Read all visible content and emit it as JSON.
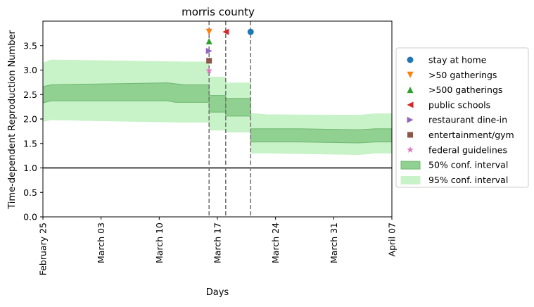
{
  "chart_data": {
    "type": "line",
    "title": "morris county",
    "xlabel": "Days",
    "ylabel": "Time-dependent Reproduction Number",
    "xlim": [
      "2020-02-25",
      "2020-04-07"
    ],
    "ylim": [
      0,
      4.0
    ],
    "yticks": [
      0.0,
      0.5,
      1.0,
      1.5,
      2.0,
      2.5,
      3.0,
      3.5
    ],
    "xticks": [
      {
        "date": "2020-02-25",
        "label": "February 25"
      },
      {
        "date": "2020-03-03",
        "label": "March 03"
      },
      {
        "date": "2020-03-10",
        "label": "March 10"
      },
      {
        "date": "2020-03-17",
        "label": "March 17"
      },
      {
        "date": "2020-03-24",
        "label": "March 24"
      },
      {
        "date": "2020-03-31",
        "label": "March 31"
      },
      {
        "date": "2020-04-07",
        "label": "April 07"
      }
    ],
    "grid": false,
    "legend_position": "right",
    "reference_line": {
      "y": 1.0,
      "color": "#000000"
    },
    "interventions": [
      {
        "name": "stay at home",
        "date": "2020-03-21",
        "y": 3.78,
        "marker": "circle",
        "color": "#1f77b4"
      },
      {
        "name": ">50 gatherings",
        "date": "2020-03-16",
        "y": 3.78,
        "marker": "triangle-down",
        "color": "#ff7f0e"
      },
      {
        "name": ">500 gatherings",
        "date": "2020-03-16",
        "y": 3.59,
        "marker": "triangle-up",
        "color": "#2ca02c"
      },
      {
        "name": "public schools",
        "date": "2020-03-18",
        "y": 3.78,
        "marker": "triangle-left",
        "color": "#d62728"
      },
      {
        "name": "restaurant dine-in",
        "date": "2020-03-16",
        "y": 3.39,
        "marker": "triangle-right",
        "color": "#9467bd"
      },
      {
        "name": "entertainment/gym",
        "date": "2020-03-16",
        "y": 3.19,
        "marker": "square",
        "color": "#8c564b"
      },
      {
        "name": "federal guidelines",
        "date": "2020-03-16",
        "y": 2.99,
        "marker": "star",
        "color": "#e377c2"
      }
    ],
    "vertical_lines": [
      "2020-03-16",
      "2020-03-18",
      "2020-03-21"
    ],
    "series": [
      {
        "name": "50% conf. interval",
        "color": "#90d090",
        "edge_color": "#6fb86f",
        "segments": [
          {
            "x": [
              "2020-02-25",
              "2020-02-26",
              "2020-03-04",
              "2020-03-11",
              "2020-03-12",
              "2020-03-13",
              "2020-03-16"
            ],
            "lower": [
              2.33,
              2.37,
              2.37,
              2.37,
              2.34,
              2.34,
              2.34
            ],
            "upper": [
              2.66,
              2.7,
              2.72,
              2.74,
              2.72,
              2.7,
              2.7
            ]
          },
          {
            "x": [
              "2020-03-16",
              "2020-03-18"
            ],
            "lower": [
              2.14,
              2.14
            ],
            "upper": [
              2.48,
              2.48
            ]
          },
          {
            "x": [
              "2020-03-18",
              "2020-03-21"
            ],
            "lower": [
              2.06,
              2.06
            ],
            "upper": [
              2.42,
              2.42
            ]
          },
          {
            "x": [
              "2020-03-21",
              "2020-03-23",
              "2020-03-27",
              "2020-04-03",
              "2020-04-05",
              "2020-04-07"
            ],
            "lower": [
              1.53,
              1.53,
              1.53,
              1.51,
              1.53,
              1.53
            ],
            "upper": [
              1.8,
              1.8,
              1.8,
              1.78,
              1.8,
              1.8
            ]
          }
        ]
      },
      {
        "name": "95% conf. interval",
        "color": "#c8f2c8",
        "segments": [
          {
            "x": [
              "2020-02-25",
              "2020-02-26",
              "2020-03-13",
              "2020-03-16"
            ],
            "lower": [
              1.95,
              1.98,
              1.93,
              1.93
            ],
            "upper": [
              3.15,
              3.21,
              3.17,
              3.17
            ]
          },
          {
            "x": [
              "2020-03-16",
              "2020-03-18"
            ],
            "lower": [
              1.77,
              1.77
            ],
            "upper": [
              2.86,
              2.86
            ]
          },
          {
            "x": [
              "2020-03-18",
              "2020-03-21"
            ],
            "lower": [
              1.73,
              1.73
            ],
            "upper": [
              2.74,
              2.74
            ]
          },
          {
            "x": [
              "2020-03-21",
              "2020-03-23",
              "2020-04-03",
              "2020-04-05",
              "2020-04-07"
            ],
            "lower": [
              1.3,
              1.3,
              1.27,
              1.3,
              1.3
            ],
            "upper": [
              2.12,
              2.09,
              2.08,
              2.11,
              2.11
            ]
          }
        ]
      }
    ]
  }
}
